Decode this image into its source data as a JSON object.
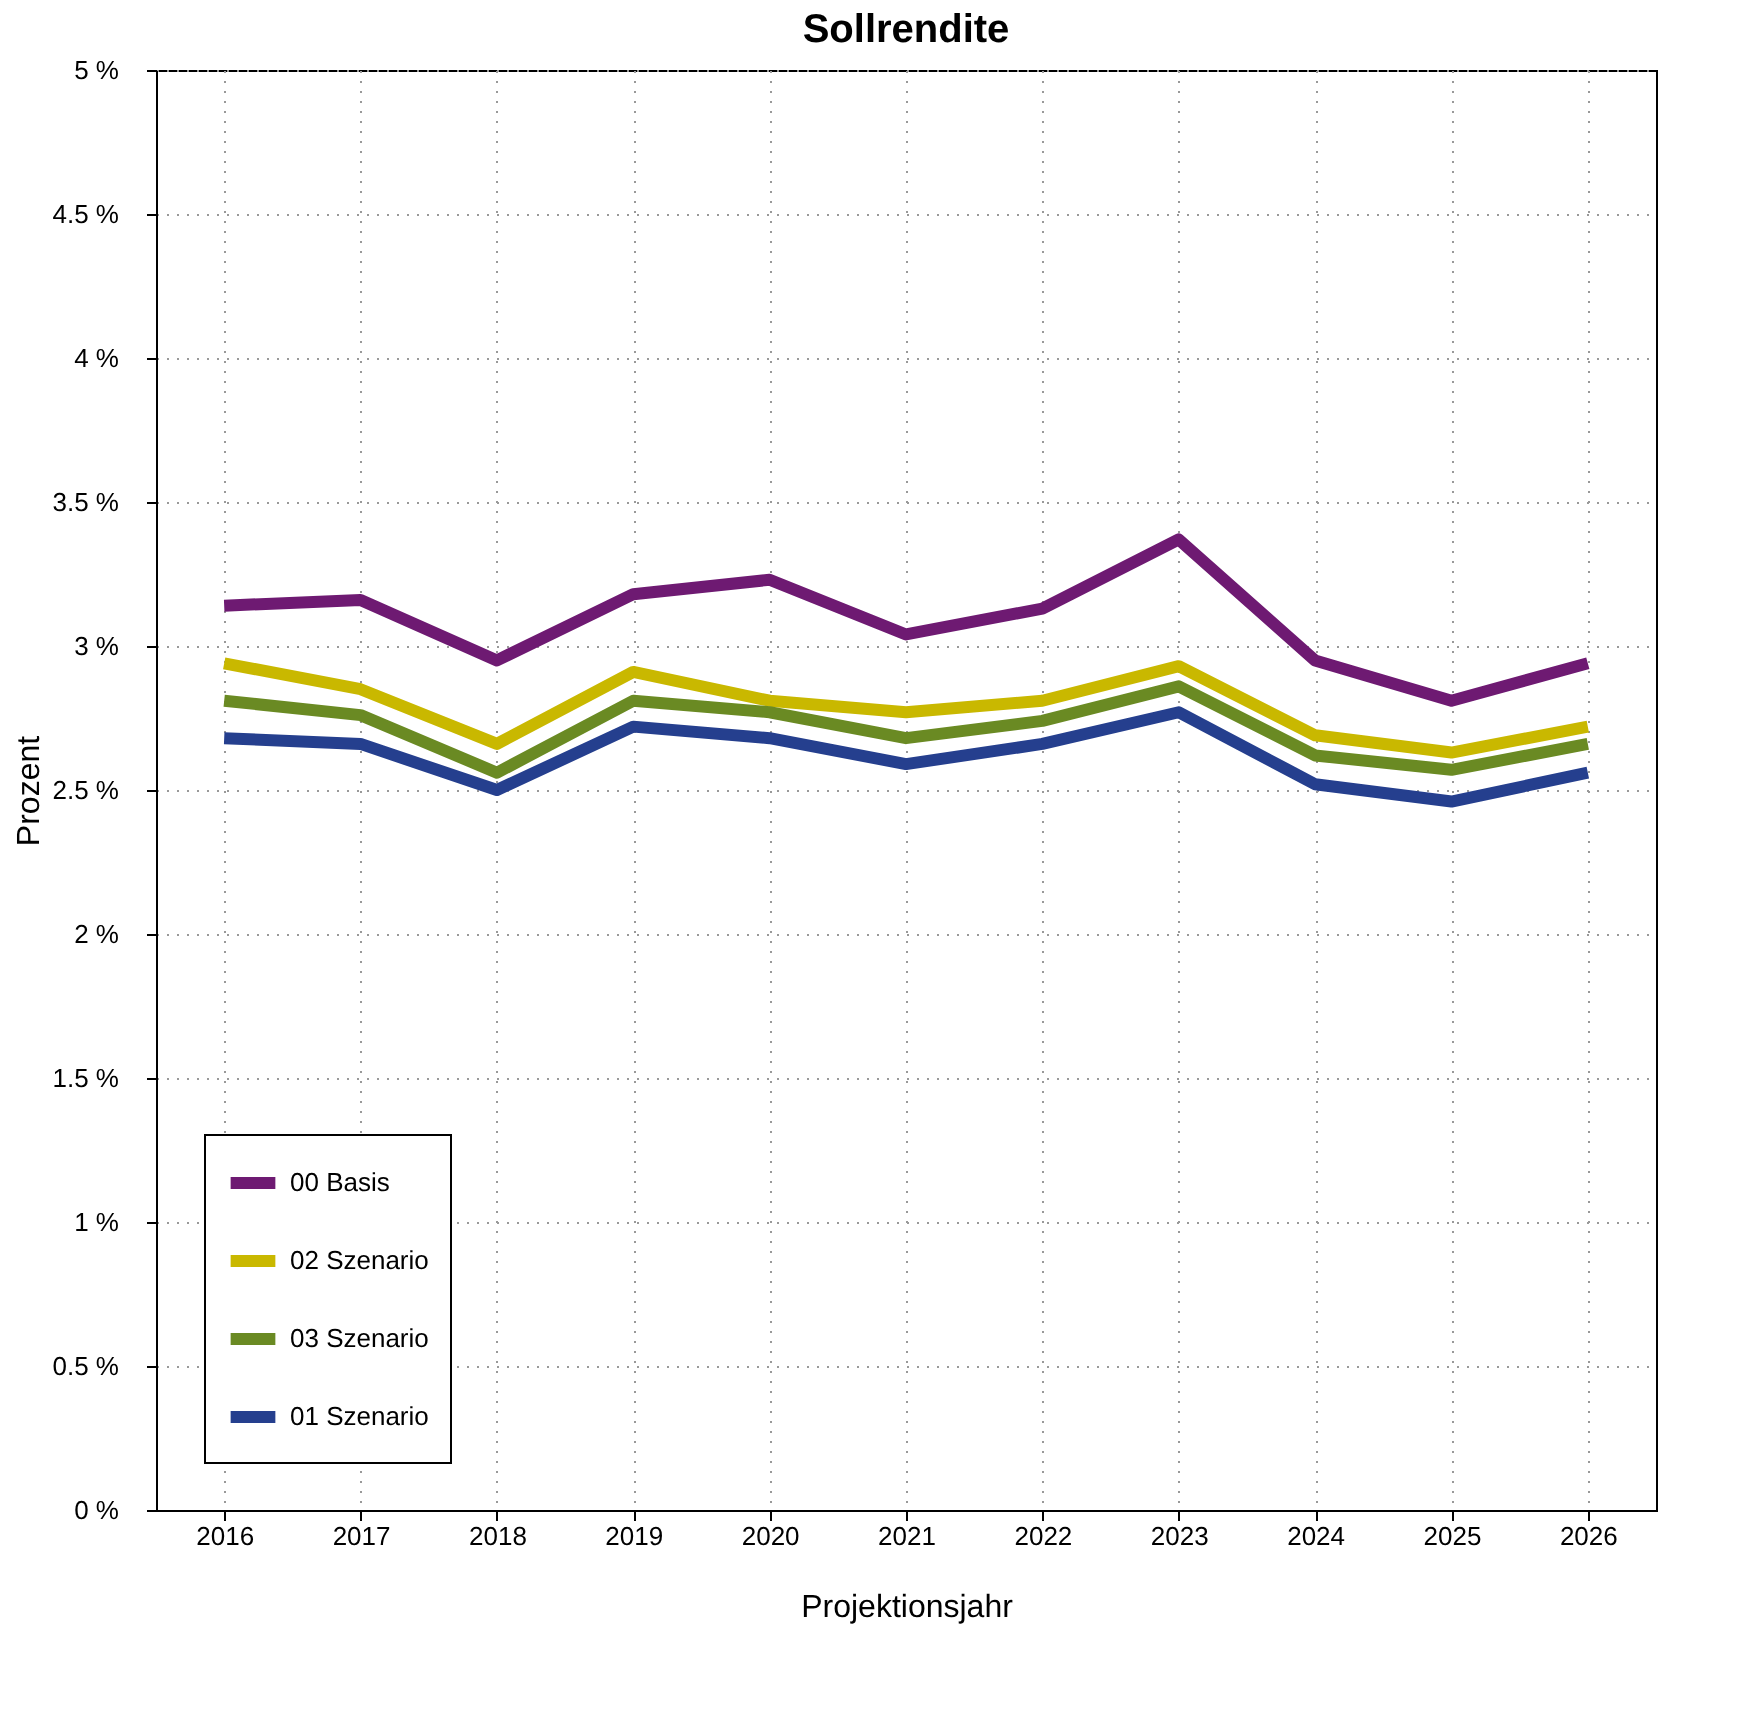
{
  "chart_data": {
    "type": "line",
    "title": "Sollrendite",
    "xlabel": "Projektionsjahr",
    "ylabel": "Prozent",
    "categories": [
      "2016",
      "2017",
      "2018",
      "2019",
      "2020",
      "2021",
      "2022",
      "2023",
      "2024",
      "2025",
      "2026"
    ],
    "series": [
      {
        "name": "00 Basis",
        "color": "#6e1a72",
        "values": [
          3.14,
          3.16,
          2.95,
          3.18,
          3.23,
          3.04,
          3.13,
          3.37,
          2.95,
          2.81,
          2.94
        ]
      },
      {
        "name": "02 Szenario",
        "color": "#c9b800",
        "values": [
          2.94,
          2.85,
          2.66,
          2.91,
          2.81,
          2.77,
          2.81,
          2.93,
          2.69,
          2.63,
          2.72
        ]
      },
      {
        "name": "03 Szenario",
        "color": "#6a8a23",
        "values": [
          2.81,
          2.76,
          2.56,
          2.81,
          2.77,
          2.68,
          2.74,
          2.86,
          2.62,
          2.57,
          2.66
        ]
      },
      {
        "name": "01 Szenario",
        "color": "#253f8e",
        "values": [
          2.68,
          2.66,
          2.5,
          2.72,
          2.68,
          2.59,
          2.66,
          2.77,
          2.52,
          2.46,
          2.56
        ]
      }
    ],
    "ylim": [
      0,
      5
    ],
    "yticks": [
      {
        "value": 0,
        "label": "0 %"
      },
      {
        "value": 0.5,
        "label": "0.5 %"
      },
      {
        "value": 1,
        "label": "1 %"
      },
      {
        "value": 1.5,
        "label": "1.5 %"
      },
      {
        "value": 2,
        "label": "2 %"
      },
      {
        "value": 2.5,
        "label": "2.5 %"
      },
      {
        "value": 3,
        "label": "3 %"
      },
      {
        "value": 3.5,
        "label": "3.5 %"
      },
      {
        "value": 4,
        "label": "4 %"
      },
      {
        "value": 4.5,
        "label": "4.5 %"
      },
      {
        "value": 5,
        "label": "5 %"
      }
    ],
    "grid": true,
    "legend": "bottom left",
    "marker": "none",
    "line_style": "solid"
  }
}
